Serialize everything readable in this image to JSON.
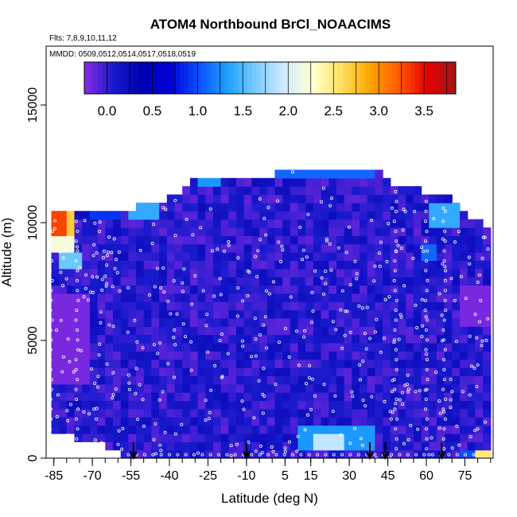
{
  "chart_data": {
    "type": "heatmap",
    "title": "ATOM4 Northbound BrCl_NOAACIMS",
    "subtitle_flights": "Flts: 7,8,9,10,11,12",
    "subtitle_dates": "MMDD: 0509,0512,0514,0517,0518,0519",
    "xlabel": "Latitude (deg N)",
    "ylabel": "Altitude (m)",
    "xlim": [
      -88,
      86
    ],
    "ylim": [
      0,
      17500
    ],
    "x_ticks": [
      -85,
      -70,
      -55,
      -40,
      -25,
      -10,
      5,
      15,
      30,
      45,
      60,
      75
    ],
    "x_tick_labels": [
      "-85",
      "-70",
      "-55",
      "-40",
      "-25",
      "-10",
      "5",
      "15",
      "30",
      "45",
      "60",
      "75"
    ],
    "y_ticks": [
      0,
      5000,
      10000,
      15000
    ],
    "y_tick_labels": [
      "0",
      "5000",
      "10000",
      "15000"
    ],
    "colorbar": {
      "range": [
        -0.25,
        3.85
      ],
      "ticks": [
        0.0,
        0.5,
        1.0,
        1.5,
        2.0,
        2.5,
        3.0,
        3.5
      ],
      "tick_labels": [
        "0.0",
        "0.5",
        "1.0",
        "1.5",
        "2.0",
        "2.5",
        "3.0",
        "3.5"
      ],
      "colors": [
        "#8a2be2",
        "#1a1acd",
        "#0000b0",
        "#0000d8",
        "#0a50ff",
        "#1ea0ff",
        "#78cdff",
        "#d2ebff",
        "#ffffd0",
        "#ffe060",
        "#ffa500",
        "#ff5a00",
        "#e60000",
        "#a01818"
      ]
    },
    "flight_markers_lat": [
      -54,
      -10,
      38,
      44,
      66
    ],
    "background_value": 0.05,
    "coverage_envelope": [
      {
        "lat": -86,
        "top": 10300,
        "bottom": 1000
      },
      {
        "lat": -70,
        "top": 10600,
        "bottom": 800
      },
      {
        "lat": -55,
        "top": 10600,
        "bottom": 0
      },
      {
        "lat": -40,
        "top": 11000,
        "bottom": 0
      },
      {
        "lat": -30,
        "top": 11800,
        "bottom": 0
      },
      {
        "lat": 0,
        "top": 11800,
        "bottom": 0
      },
      {
        "lat": 5,
        "top": 12400,
        "bottom": 0
      },
      {
        "lat": 40,
        "top": 12400,
        "bottom": 0
      },
      {
        "lat": 45,
        "top": 11800,
        "bottom": 0
      },
      {
        "lat": 70,
        "top": 11000,
        "bottom": 0
      },
      {
        "lat": 85,
        "top": 9600,
        "bottom": 0
      }
    ],
    "features": [
      {
        "lat0": -86,
        "lat1": -80,
        "alt0": 9300,
        "alt1": 10400,
        "value": 3.3
      },
      {
        "lat0": -80,
        "lat1": -76,
        "alt0": 9300,
        "alt1": 10400,
        "value": 2.7
      },
      {
        "lat0": -86,
        "lat1": -76,
        "alt0": 8700,
        "alt1": 9300,
        "value": 2.2
      },
      {
        "lat0": -84,
        "lat1": -74,
        "alt0": 8000,
        "alt1": 8700,
        "value": 1.6
      },
      {
        "lat0": -72,
        "lat1": -58,
        "alt0": 10000,
        "alt1": 11100,
        "value": 0.9
      },
      {
        "lat0": -55,
        "lat1": -45,
        "alt0": 10100,
        "alt1": 11200,
        "value": 1.4
      },
      {
        "lat0": -30,
        "lat1": -20,
        "alt0": 11400,
        "alt1": 11900,
        "value": 1.3
      },
      {
        "lat0": 0,
        "lat1": 40,
        "alt0": 11800,
        "alt1": 12400,
        "value": 1.1
      },
      {
        "lat0": 10,
        "lat1": 40,
        "alt0": 400,
        "alt1": 1500,
        "value": 1.3
      },
      {
        "lat0": 15,
        "lat1": 28,
        "alt0": 500,
        "alt1": 1000,
        "value": 1.9
      },
      {
        "lat0": 62,
        "lat1": 72,
        "alt0": 9800,
        "alt1": 11000,
        "value": 1.4
      },
      {
        "lat0": 58,
        "lat1": 64,
        "alt0": 8500,
        "alt1": 9200,
        "value": 1.1
      },
      {
        "lat0": 78,
        "lat1": 85,
        "alt0": 0,
        "alt1": 500,
        "value": 2.5
      },
      {
        "lat0": 72,
        "lat1": 78,
        "alt0": 0,
        "alt1": 500,
        "value": 1.0
      },
      {
        "lat0": -86,
        "lat1": -70,
        "alt0": 3000,
        "alt1": 7000,
        "value": -0.2
      },
      {
        "lat0": 72,
        "lat1": 85,
        "alt0": 5500,
        "alt1": 7500,
        "value": -0.2
      }
    ]
  }
}
